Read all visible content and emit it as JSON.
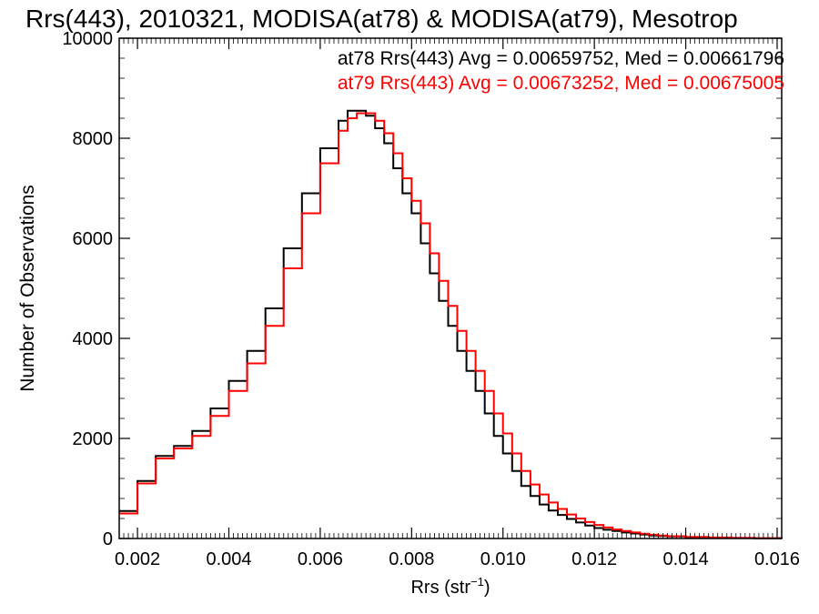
{
  "chart_data": {
    "type": "line",
    "title": "Rrs(443), 2010321, MODISA(at78) & MODISA(at79), Mesotrop",
    "xlabel": "Rrs (str",
    "xlabel_sup": "−1",
    "xlabel_close": ")",
    "ylabel": "Number of Observations",
    "xlim": [
      0.0016,
      0.0161
    ],
    "ylim": [
      0,
      10000
    ],
    "xticks": [
      {
        "value": 0.002,
        "label": "0.002"
      },
      {
        "value": 0.004,
        "label": "0.004"
      },
      {
        "value": 0.006,
        "label": "0.006"
      },
      {
        "value": 0.008,
        "label": "0.008"
      },
      {
        "value": 0.01,
        "label": "0.010"
      },
      {
        "value": 0.012,
        "label": "0.012"
      },
      {
        "value": 0.014,
        "label": "0.014"
      },
      {
        "value": 0.016,
        "label": "0.016"
      }
    ],
    "yticks": [
      {
        "value": 0,
        "label": "0"
      },
      {
        "value": 2000,
        "label": "2000"
      },
      {
        "value": 4000,
        "label": "4000"
      },
      {
        "value": 6000,
        "label": "6000"
      },
      {
        "value": 8000,
        "label": "8000"
      },
      {
        "value": 10000,
        "label": "10000"
      }
    ],
    "grid": false,
    "annotations": [
      {
        "text": "at78 Rrs(443) Avg = 0.00659752, Med = 0.00661796",
        "color": "#000000"
      },
      {
        "text": "at79 Rrs(443) Avg = 0.00673252, Med = 0.00675005",
        "color": "#ff0000"
      }
    ],
    "series": [
      {
        "color": "#000000",
        "x": [
          0.0016,
          0.002,
          0.0024,
          0.0028,
          0.0032,
          0.0036,
          0.004,
          0.0044,
          0.0048,
          0.0052,
          0.0056,
          0.006,
          0.0064,
          0.0066,
          0.0068,
          0.007,
          0.0072,
          0.0074,
          0.0076,
          0.0078,
          0.008,
          0.0082,
          0.0084,
          0.0086,
          0.0088,
          0.009,
          0.0092,
          0.0094,
          0.0096,
          0.0098,
          0.01,
          0.0102,
          0.0104,
          0.0106,
          0.0108,
          0.011,
          0.0112,
          0.0114,
          0.0116,
          0.0118,
          0.012,
          0.0122,
          0.0124,
          0.0126,
          0.0128,
          0.013,
          0.0132,
          0.0134,
          0.0136,
          0.014,
          0.0145,
          0.015,
          0.0155,
          0.0161
        ],
        "y": [
          550,
          1150,
          1650,
          1850,
          2150,
          2600,
          3150,
          3750,
          4600,
          5800,
          6900,
          7800,
          8350,
          8550,
          8550,
          8450,
          8200,
          7900,
          7400,
          6900,
          6500,
          5900,
          5300,
          4750,
          4250,
          3750,
          3350,
          2950,
          2500,
          2050,
          1700,
          1350,
          1050,
          850,
          680,
          560,
          470,
          390,
          320,
          260,
          210,
          175,
          150,
          120,
          100,
          80,
          60,
          50,
          40,
          28,
          18,
          10,
          6,
          3
        ]
      },
      {
        "color": "#ff0000",
        "x": [
          0.0016,
          0.002,
          0.0024,
          0.0028,
          0.0032,
          0.0036,
          0.004,
          0.0044,
          0.0048,
          0.0052,
          0.0056,
          0.006,
          0.0064,
          0.0066,
          0.0068,
          0.007,
          0.0072,
          0.0074,
          0.0076,
          0.0078,
          0.008,
          0.0082,
          0.0084,
          0.0086,
          0.0088,
          0.009,
          0.0092,
          0.0094,
          0.0096,
          0.0098,
          0.01,
          0.0102,
          0.0104,
          0.0106,
          0.0108,
          0.011,
          0.0112,
          0.0114,
          0.0116,
          0.0118,
          0.012,
          0.0122,
          0.0124,
          0.0126,
          0.0128,
          0.013,
          0.0132,
          0.0134,
          0.0136,
          0.014,
          0.0145,
          0.015,
          0.0155,
          0.0161
        ],
        "y": [
          500,
          1100,
          1600,
          1800,
          2050,
          2450,
          2950,
          3500,
          4250,
          5400,
          6500,
          7500,
          8150,
          8400,
          8500,
          8500,
          8350,
          8100,
          7700,
          7200,
          6750,
          6300,
          5700,
          5150,
          4650,
          4150,
          3750,
          3350,
          2950,
          2500,
          2100,
          1700,
          1350,
          1080,
          880,
          720,
          590,
          480,
          400,
          330,
          270,
          220,
          180,
          150,
          120,
          95,
          75,
          60,
          45,
          32,
          20,
          12,
          7,
          4
        ]
      }
    ]
  }
}
